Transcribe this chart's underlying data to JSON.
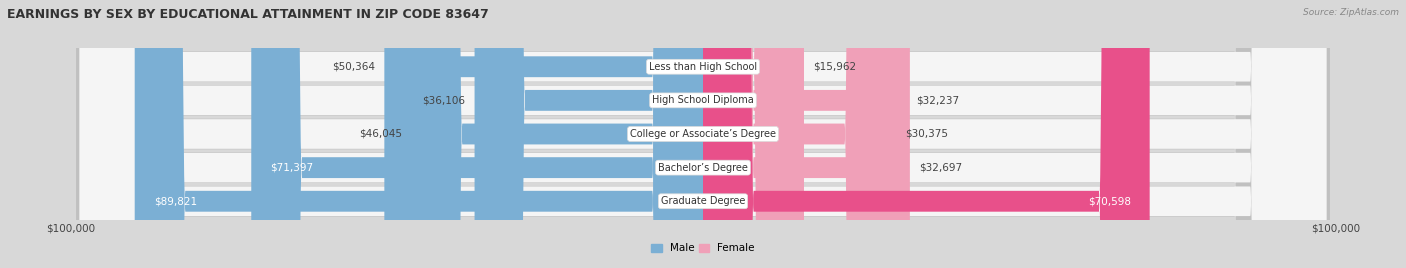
{
  "title": "EARNINGS BY SEX BY EDUCATIONAL ATTAINMENT IN ZIP CODE 83647",
  "source": "Source: ZipAtlas.com",
  "categories": [
    "Less than High School",
    "High School Diploma",
    "College or Associate’s Degree",
    "Bachelor’s Degree",
    "Graduate Degree"
  ],
  "male_values": [
    50364,
    36106,
    46045,
    71397,
    89821
  ],
  "female_values": [
    15962,
    32237,
    30375,
    32697,
    70598
  ],
  "male_color": "#7bafd4",
  "female_colors": [
    "#f0a0b8",
    "#f0a0b8",
    "#f0a0b8",
    "#f0a0b8",
    "#e8508a"
  ],
  "max_val": 100000,
  "x_label_left": "$100,000",
  "x_label_right": "$100,000",
  "bar_height": 0.62,
  "bg_color": "#d8d8d8",
  "row_bg_color": "#f5f5f5",
  "row_shadow_color": "#c0c0c0",
  "label_fontsize": 7.5,
  "title_fontsize": 9.0,
  "category_fontsize": 7.0
}
